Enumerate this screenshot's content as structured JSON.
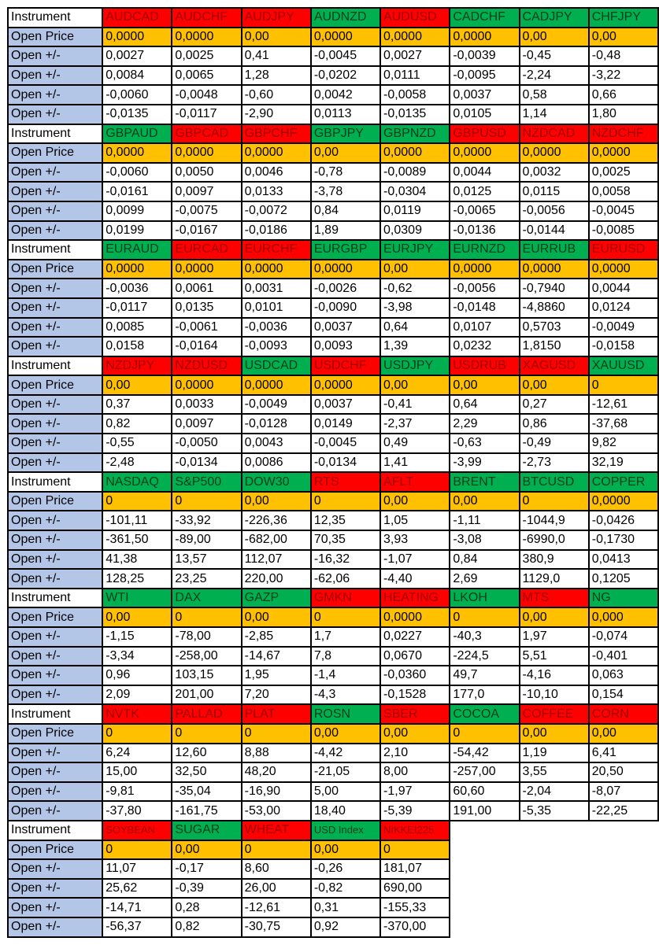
{
  "labels": {
    "instrument": "Instrument",
    "open_price": "Open Price",
    "open_change": "Open +/-"
  },
  "colors": {
    "red": "#ff0000",
    "green": "#00b050",
    "open_price": "#ffc000",
    "label": "#b4c6e7"
  },
  "blocks": [
    {
      "instruments": [
        {
          "name": "AUDCAD",
          "trend": "red"
        },
        {
          "name": "AUDCHF",
          "trend": "red"
        },
        {
          "name": "AUDJPY",
          "trend": "red"
        },
        {
          "name": "AUDNZD",
          "trend": "green"
        },
        {
          "name": "AUDUSD",
          "trend": "red"
        },
        {
          "name": "CADCHF",
          "trend": "green"
        },
        {
          "name": "CADJPY",
          "trend": "green"
        },
        {
          "name": "CHFJPY",
          "trend": "green"
        }
      ],
      "open_price": [
        "0,0000",
        "0,0000",
        "0,00",
        "0,0000",
        "0,0000",
        "0,0000",
        "0,00",
        "0,00"
      ],
      "changes": [
        [
          "0,0027",
          "0,0025",
          "0,41",
          "-0,0045",
          "0,0027",
          "-0,0039",
          "-0,45",
          "-0,48"
        ],
        [
          "0,0084",
          "0,0065",
          "1,28",
          "-0,0202",
          "0,0111",
          "-0,0095",
          "-2,24",
          "-3,22"
        ],
        [
          "-0,0060",
          "-0,0048",
          "-0,60",
          "0,0042",
          "-0,0058",
          "0,0037",
          "0,58",
          "0,66"
        ],
        [
          "-0,0135",
          "-0,0117",
          "-2,90",
          "0,0113",
          "-0,0135",
          "0,0105",
          "1,14",
          "1,80"
        ]
      ]
    },
    {
      "instruments": [
        {
          "name": "GBPAUD",
          "trend": "green"
        },
        {
          "name": "GBPCAD",
          "trend": "red"
        },
        {
          "name": "GBPCHF",
          "trend": "red"
        },
        {
          "name": "GBPJPY",
          "trend": "green"
        },
        {
          "name": "GBPNZD",
          "trend": "green"
        },
        {
          "name": "GBPUSD",
          "trend": "red"
        },
        {
          "name": "NZDCAD",
          "trend": "red"
        },
        {
          "name": "NZDCHF",
          "trend": "red"
        }
      ],
      "open_price": [
        "0,0000",
        "0,0000",
        "0,0000",
        "0,00",
        "0,0000",
        "0,0000",
        "0,0000",
        "0,0000"
      ],
      "changes": [
        [
          "-0,0060",
          "0,0050",
          "0,0046",
          "-0,78",
          "-0,0089",
          "0,0044",
          "0,0032",
          "0,0025"
        ],
        [
          "-0,0161",
          "0,0097",
          "0,0133",
          "-3,78",
          "-0,0304",
          "0,0125",
          "0,0115",
          "0,0058"
        ],
        [
          "0,0099",
          "-0,0075",
          "-0,0072",
          "0,84",
          "0,0119",
          "-0,0065",
          "-0,0056",
          "-0,0045"
        ],
        [
          "0,0199",
          "-0,0167",
          "-0,0186",
          "1,89",
          "0,0309",
          "-0,0136",
          "-0,0144",
          "-0,0085"
        ]
      ]
    },
    {
      "instruments": [
        {
          "name": "EURAUD",
          "trend": "green"
        },
        {
          "name": "EURCAD",
          "trend": "red"
        },
        {
          "name": "EURCHF",
          "trend": "red"
        },
        {
          "name": "EURGBP",
          "trend": "green"
        },
        {
          "name": "EURJPY",
          "trend": "green"
        },
        {
          "name": "EURNZD",
          "trend": "green"
        },
        {
          "name": "EURRUB",
          "trend": "green"
        },
        {
          "name": "EURUSD",
          "trend": "red"
        }
      ],
      "open_price": [
        "0,0000",
        "0,0000",
        "0,0000",
        "0,0000",
        "0,00",
        "0,0000",
        "0,0000",
        "0,0000"
      ],
      "changes": [
        [
          "-0,0036",
          "0,0061",
          "0,0031",
          "-0,0026",
          "-0,62",
          "-0,0056",
          "-0,7940",
          "0,0044"
        ],
        [
          "-0,0117",
          "0,0135",
          "0,0101",
          "-0,0090",
          "-3,98",
          "-0,0148",
          "-4,8860",
          "0,0124"
        ],
        [
          "0,0085",
          "-0,0061",
          "-0,0036",
          "0,0037",
          "0,64",
          "0,0107",
          "0,5703",
          "-0,0049"
        ],
        [
          "0,0158",
          "-0,0164",
          "-0,0093",
          "0,0093",
          "1,39",
          "0,0232",
          "1,8150",
          "-0,0158"
        ]
      ]
    },
    {
      "instruments": [
        {
          "name": "NZDJPY",
          "trend": "red"
        },
        {
          "name": "NZDUSD",
          "trend": "red"
        },
        {
          "name": "USDCAD",
          "trend": "green"
        },
        {
          "name": "USDCHF",
          "trend": "red"
        },
        {
          "name": "USDJPY",
          "trend": "green"
        },
        {
          "name": "USDRUB",
          "trend": "red"
        },
        {
          "name": "XAGUSD",
          "trend": "red"
        },
        {
          "name": "XAUUSD",
          "trend": "green"
        }
      ],
      "open_price": [
        "0,00",
        "0,0000",
        "0,0000",
        "0,0000",
        "0,00",
        "0,00",
        "0,00",
        "0"
      ],
      "changes": [
        [
          "0,37",
          "0,0033",
          "-0,0049",
          "0,0037",
          "-0,41",
          "0,64",
          "0,27",
          "-12,61"
        ],
        [
          "0,82",
          "0,0097",
          "-0,0128",
          "0,0149",
          "-2,37",
          "2,29",
          "0,86",
          "-37,68"
        ],
        [
          "-0,55",
          "-0,0050",
          "0,0043",
          "-0,0045",
          "0,49",
          "-0,63",
          "-0,49",
          "9,82"
        ],
        [
          "-2,48",
          "-0,0134",
          "0,0086",
          "-0,0134",
          "1,41",
          "-3,99",
          "-2,73",
          "32,19"
        ]
      ]
    },
    {
      "instruments": [
        {
          "name": "NASDAQ",
          "trend": "green"
        },
        {
          "name": "S&P500",
          "trend": "green"
        },
        {
          "name": "DOW30",
          "trend": "green"
        },
        {
          "name": "RTS",
          "trend": "red"
        },
        {
          "name": "AFLT",
          "trend": "red"
        },
        {
          "name": "BRENT",
          "trend": "green"
        },
        {
          "name": "BTCUSD",
          "trend": "green"
        },
        {
          "name": "COPPER",
          "trend": "green"
        }
      ],
      "open_price": [
        "0",
        "0",
        "0,00",
        "0",
        "0,00",
        "0,00",
        "0",
        "0,0000"
      ],
      "changes": [
        [
          "-101,11",
          "-33,92",
          "-226,36",
          "12,35",
          "1,05",
          "-1,11",
          "-1044,9",
          "-0,0426"
        ],
        [
          "-361,50",
          "-89,00",
          "-682,00",
          "70,35",
          "3,93",
          "-3,08",
          "-6990,0",
          "-0,1730"
        ],
        [
          "41,38",
          "13,57",
          "112,07",
          "-16,32",
          "-1,07",
          "0,84",
          "380,9",
          "0,0413"
        ],
        [
          "128,25",
          "23,25",
          "220,00",
          "-62,06",
          "-4,40",
          "2,69",
          "1129,0",
          "0,1205"
        ]
      ]
    },
    {
      "instruments": [
        {
          "name": "WTI",
          "trend": "green"
        },
        {
          "name": "DAX",
          "trend": "green"
        },
        {
          "name": "GAZP",
          "trend": "green"
        },
        {
          "name": "GMKN",
          "trend": "red"
        },
        {
          "name": "HEATING",
          "trend": "red"
        },
        {
          "name": "LKOH",
          "trend": "green"
        },
        {
          "name": "MTS",
          "trend": "red"
        },
        {
          "name": "NG",
          "trend": "green"
        }
      ],
      "open_price": [
        "0,00",
        "0",
        "0,00",
        "0",
        "0,0000",
        "0",
        "0,00",
        "0,000"
      ],
      "changes": [
        [
          "-1,15",
          "-78,00",
          "-2,85",
          "1,7",
          "0,0227",
          "-40,3",
          "1,97",
          "-0,074"
        ],
        [
          "-3,34",
          "-258,00",
          "-14,67",
          "7,8",
          "0,0670",
          "-224,5",
          "5,51",
          "-0,401"
        ],
        [
          "0,96",
          "103,15",
          "1,95",
          "-1,4",
          "-0,0360",
          "49,7",
          "-4,16",
          "0,063"
        ],
        [
          "2,09",
          "201,00",
          "7,20",
          "-4,3",
          "-0,1528",
          "177,0",
          "-10,10",
          "0,154"
        ]
      ]
    },
    {
      "instruments": [
        {
          "name": "NVTK",
          "trend": "red"
        },
        {
          "name": "PALLAD",
          "trend": "red"
        },
        {
          "name": "PLAT",
          "trend": "red"
        },
        {
          "name": "ROSN",
          "trend": "green"
        },
        {
          "name": "SBER",
          "trend": "red"
        },
        {
          "name": "COCOA",
          "trend": "green"
        },
        {
          "name": "COFFEE",
          "trend": "red"
        },
        {
          "name": "CORN",
          "trend": "red"
        }
      ],
      "open_price": [
        "0",
        "0",
        "0",
        "0,00",
        "0,00",
        "0",
        "0,00",
        "0,00"
      ],
      "changes": [
        [
          "6,24",
          "12,60",
          "8,88",
          "-4,42",
          "2,10",
          "-54,42",
          "1,19",
          "6,41"
        ],
        [
          "15,00",
          "32,50",
          "48,20",
          "-21,05",
          "8,00",
          "-257,00",
          "3,55",
          "20,50"
        ],
        [
          "-9,81",
          "-35,04",
          "-16,90",
          "5,00",
          "-1,97",
          "60,60",
          "-2,04",
          "-8,07"
        ],
        [
          "-37,80",
          "-161,75",
          "-53,00",
          "18,40",
          "-5,39",
          "191,00",
          "-5,35",
          "-22,25"
        ]
      ]
    },
    {
      "instruments": [
        {
          "name": "SOYBEAN",
          "trend": "red",
          "small": true
        },
        {
          "name": "SUGAR",
          "trend": "green"
        },
        {
          "name": "WHEAT",
          "trend": "red"
        },
        {
          "name": "USD Index",
          "trend": "green",
          "small": true
        },
        {
          "name": "NIKKEI225",
          "trend": "red",
          "small": true
        }
      ],
      "open_price": [
        "0",
        "0,00",
        "0",
        "0,00",
        "0"
      ],
      "changes": [
        [
          "11,07",
          "-0,17",
          "8,60",
          "-0,26",
          "181,07"
        ],
        [
          "25,62",
          "-0,39",
          "26,00",
          "-0,82",
          "690,00"
        ],
        [
          "-14,71",
          "0,28",
          "-12,61",
          "0,31",
          "-155,33"
        ],
        [
          "-56,37",
          "0,82",
          "-30,75",
          "0,92",
          "-370,00"
        ]
      ]
    }
  ]
}
